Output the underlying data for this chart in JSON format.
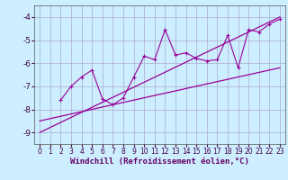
{
  "xlabel": "Windchill (Refroidissement éolien,°C)",
  "bg_color": "#cceeff",
  "grid_color": "#aaaacc",
  "line_color": "#990099",
  "xlim": [
    -0.5,
    23.5
  ],
  "ylim": [
    -9.5,
    -3.5
  ],
  "yticks": [
    -9,
    -8,
    -7,
    -6,
    -5,
    -4
  ],
  "xticks": [
    0,
    1,
    2,
    3,
    4,
    5,
    6,
    7,
    8,
    9,
    10,
    11,
    12,
    13,
    14,
    15,
    16,
    17,
    18,
    19,
    20,
    21,
    22,
    23
  ],
  "line1_x": [
    0,
    23
  ],
  "line1_y": [
    -9.0,
    -4.0
  ],
  "line2_x": [
    0,
    23
  ],
  "line2_y": [
    -8.5,
    -6.2
  ],
  "zigzag_x": [
    2,
    3,
    4,
    5,
    6,
    7,
    8,
    9,
    10,
    11,
    12,
    13,
    14,
    15,
    16,
    17,
    18,
    19,
    20,
    21,
    22,
    23
  ],
  "zigzag_y": [
    -7.6,
    -7.0,
    -6.6,
    -6.3,
    -7.55,
    -7.8,
    -7.5,
    -6.6,
    -5.7,
    -5.85,
    -4.55,
    -5.65,
    -5.55,
    -5.8,
    -5.9,
    -5.85,
    -4.8,
    -6.2,
    -4.55,
    -4.65,
    -4.3,
    -4.1
  ]
}
